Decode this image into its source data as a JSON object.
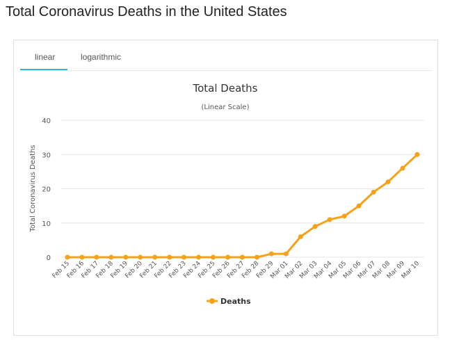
{
  "page": {
    "title": "Total Coronavirus Deaths in the United States"
  },
  "tabs": [
    {
      "label": "linear",
      "active": true
    },
    {
      "label": "logarithmic",
      "active": false
    }
  ],
  "colors": {
    "accent": "#29b6d8",
    "series": "#f7a11a",
    "grid": "#e6e6e6",
    "text": "#333333"
  },
  "chart_data": {
    "type": "line",
    "title": "Total Deaths",
    "subtitle": "(Linear Scale)",
    "ylabel": "Total Coronavirus Deaths",
    "xlabel": "",
    "ylim": [
      0,
      40
    ],
    "yticks": [
      0,
      10,
      20,
      30,
      40
    ],
    "grid": true,
    "legend": "bottom",
    "categories": [
      "Feb 15",
      "Feb 16",
      "Feb 17",
      "Feb 18",
      "Feb 19",
      "Feb 20",
      "Feb 21",
      "Feb 22",
      "Feb 23",
      "Feb 24",
      "Feb 25",
      "Feb 26",
      "Feb 27",
      "Feb 28",
      "Feb 29",
      "Mar 01",
      "Mar 02",
      "Mar 03",
      "Mar 04",
      "Mar 05",
      "Mar 06",
      "Mar 07",
      "Mar 08",
      "Mar 09",
      "Mar 10"
    ],
    "series": [
      {
        "name": "Deaths",
        "values": [
          0,
          0,
          0,
          0,
          0,
          0,
          0,
          0,
          0,
          0,
          0,
          0,
          0,
          0,
          1,
          1,
          6,
          9,
          11,
          12,
          15,
          19,
          22,
          26,
          30
        ]
      }
    ]
  }
}
